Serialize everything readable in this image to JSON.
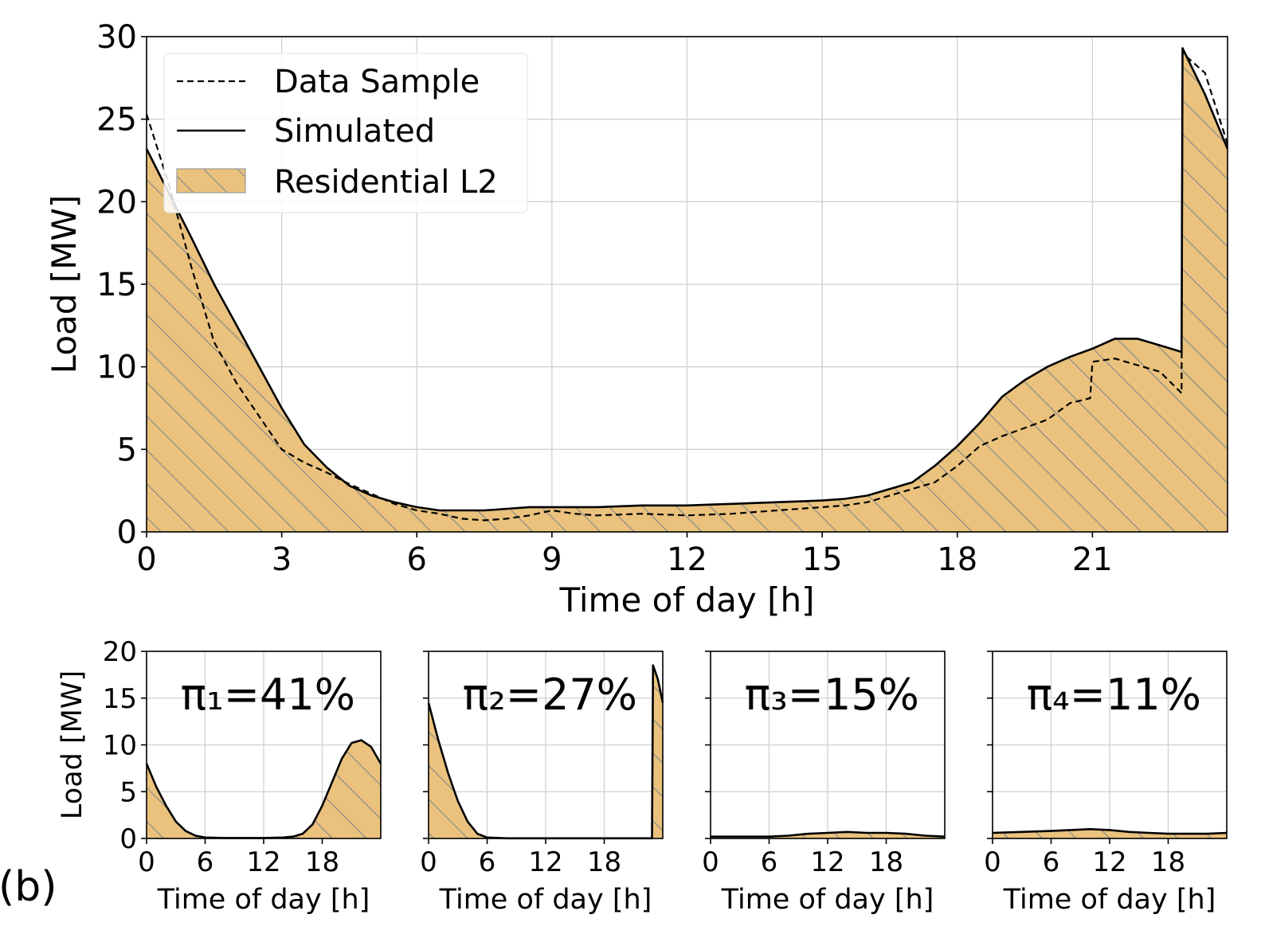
{
  "chart_data": [
    {
      "id": "main",
      "type": "area",
      "xlabel": "Time of day [h]",
      "ylabel": "Load [MW]",
      "xlim": [
        0,
        24
      ],
      "ylim": [
        0,
        30
      ],
      "xticks": [
        "0",
        "3",
        "6",
        "9",
        "12",
        "15",
        "18",
        "21"
      ],
      "yticks": [
        "0",
        "5",
        "10",
        "15",
        "20",
        "25",
        "30"
      ],
      "grid": true,
      "legend_position": "top-left",
      "legend": [
        "Data Sample",
        "Simulated",
        "Residential L2"
      ],
      "series": [
        {
          "name": "Simulated",
          "style": "solid",
          "x": [
            0,
            0.5,
            1,
            1.5,
            2,
            2.5,
            3,
            3.5,
            4,
            4.5,
            5,
            5.5,
            6,
            6.5,
            7,
            7.5,
            8,
            8.5,
            9,
            10,
            11,
            12,
            13,
            14,
            15,
            15.5,
            16,
            16.5,
            17,
            17.5,
            18,
            18.5,
            19,
            19.5,
            20,
            20.5,
            21,
            21.5,
            22,
            22.5,
            22.98,
            23.0,
            23.5,
            24
          ],
          "values": [
            23.2,
            20.5,
            17.8,
            15.0,
            12.5,
            10.0,
            7.5,
            5.3,
            3.9,
            2.8,
            2.2,
            1.8,
            1.5,
            1.3,
            1.3,
            1.3,
            1.4,
            1.5,
            1.5,
            1.5,
            1.6,
            1.6,
            1.7,
            1.8,
            1.9,
            2.0,
            2.2,
            2.6,
            3.0,
            4.0,
            5.2,
            6.6,
            8.2,
            9.2,
            10.0,
            10.6,
            11.1,
            11.7,
            11.7,
            11.3,
            10.9,
            29.3,
            26.5,
            23.2
          ]
        },
        {
          "name": "Data Sample",
          "style": "dashed",
          "x": [
            0,
            0.5,
            1,
            1.5,
            2,
            2.5,
            3,
            3.5,
            4,
            4.5,
            5,
            5.5,
            6,
            6.5,
            7,
            7.5,
            8,
            8.5,
            9,
            9.5,
            10,
            11,
            12,
            13,
            14,
            15,
            15.5,
            16,
            16.5,
            17,
            17.5,
            18,
            18.5,
            19,
            19.5,
            20,
            20.5,
            20.95,
            21.0,
            21.5,
            22,
            22.5,
            22.98,
            23.0,
            23.5,
            24
          ],
          "values": [
            25.3,
            21.0,
            16.0,
            11.5,
            9.0,
            7.0,
            5.0,
            4.2,
            3.6,
            2.9,
            2.3,
            1.7,
            1.3,
            1.1,
            0.8,
            0.7,
            0.8,
            1.0,
            1.3,
            1.1,
            1.0,
            1.1,
            1.0,
            1.1,
            1.3,
            1.5,
            1.6,
            1.8,
            2.2,
            2.6,
            3.0,
            4.0,
            5.2,
            5.8,
            6.3,
            6.8,
            7.8,
            8.1,
            10.3,
            10.5,
            10.1,
            9.7,
            8.4,
            29.0,
            27.8,
            23.5
          ]
        }
      ]
    },
    {
      "id": "pi1",
      "type": "area",
      "annotation": "π₁=41%",
      "xlabel": "Time of day [h]",
      "ylabel": "Load [MW]",
      "xlim": [
        0,
        24
      ],
      "ylim": [
        0,
        20
      ],
      "xticks": [
        "0",
        "6",
        "12",
        "18"
      ],
      "yticks": [
        "0",
        "5",
        "10",
        "15",
        "20"
      ],
      "series": [
        {
          "name": "Simulated",
          "x": [
            0,
            1,
            2,
            3,
            4,
            5,
            6,
            8,
            10,
            12,
            14,
            15,
            16,
            17,
            18,
            19,
            20,
            21,
            22,
            23,
            24
          ],
          "values": [
            8.0,
            5.5,
            3.5,
            1.8,
            0.8,
            0.3,
            0.1,
            0.05,
            0.05,
            0.05,
            0.1,
            0.2,
            0.5,
            1.5,
            3.5,
            6.0,
            8.5,
            10.2,
            10.5,
            9.8,
            8.0
          ]
        }
      ]
    },
    {
      "id": "pi2",
      "type": "area",
      "annotation": "π₂=27%",
      "xlabel": "Time of day [h]",
      "xlim": [
        0,
        24
      ],
      "ylim": [
        0,
        20
      ],
      "xticks": [
        "0",
        "6",
        "12",
        "18"
      ],
      "series": [
        {
          "name": "Simulated",
          "x": [
            0,
            0.5,
            1,
            2,
            3,
            4,
            5,
            6,
            8,
            12,
            18,
            22.9,
            23.0,
            23.5,
            24
          ],
          "values": [
            14.5,
            12.5,
            10.5,
            7.0,
            4.0,
            1.8,
            0.5,
            0.1,
            0.02,
            0.02,
            0.02,
            0.02,
            18.5,
            17.0,
            14.5
          ]
        }
      ]
    },
    {
      "id": "pi3",
      "type": "area",
      "annotation": "π₃=15%",
      "xlabel": "Time of day [h]",
      "xlim": [
        0,
        24
      ],
      "ylim": [
        0,
        20
      ],
      "xticks": [
        "0",
        "6",
        "12",
        "18"
      ],
      "series": [
        {
          "name": "Simulated",
          "x": [
            0,
            3,
            6,
            8,
            10,
            12,
            14,
            16,
            18,
            20,
            22,
            24
          ],
          "values": [
            0.2,
            0.2,
            0.2,
            0.3,
            0.5,
            0.6,
            0.7,
            0.6,
            0.6,
            0.5,
            0.3,
            0.2
          ]
        }
      ]
    },
    {
      "id": "pi4",
      "type": "area",
      "annotation": "π₄=11%",
      "xlabel": "Time of day [h]",
      "xlim": [
        0,
        24
      ],
      "ylim": [
        0,
        20
      ],
      "xticks": [
        "0",
        "6",
        "12",
        "18"
      ],
      "series": [
        {
          "name": "Simulated",
          "x": [
            0,
            3,
            6,
            8,
            10,
            12,
            14,
            16,
            18,
            20,
            22,
            24
          ],
          "values": [
            0.6,
            0.7,
            0.8,
            0.9,
            1.0,
            0.9,
            0.7,
            0.6,
            0.5,
            0.5,
            0.5,
            0.6
          ]
        }
      ]
    }
  ],
  "panel_label": "(b)",
  "colors": {
    "fill": "#eac27d",
    "hatch": "#8a8a8a",
    "line": "#000000",
    "grid": "#d0d0d0"
  }
}
